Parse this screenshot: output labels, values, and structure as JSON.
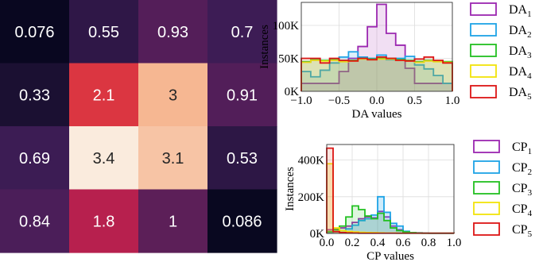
{
  "chart_data": [
    {
      "type": "heatmap",
      "rows": 4,
      "cols": 4,
      "values": [
        [
          0.076,
          0.55,
          0.93,
          0.7
        ],
        [
          0.33,
          2.1,
          3,
          0.91
        ],
        [
          0.69,
          3.4,
          3.1,
          0.53
        ],
        [
          0.84,
          1.8,
          1,
          0.086
        ]
      ],
      "labels": [
        [
          "0.076",
          "0.55",
          "0.93",
          "0.7"
        ],
        [
          "0.33",
          "2.1",
          "3",
          "0.91"
        ],
        [
          "0.69",
          "3.4",
          "3.1",
          "0.53"
        ],
        [
          "0.84",
          "1.8",
          "1",
          "0.086"
        ]
      ],
      "colormap": "rocket",
      "vmin": 0,
      "vmax": 3.4
    },
    {
      "type": "histogram",
      "xlabel": "DA values",
      "ylabel": "Instances",
      "xlim": [
        -1.0,
        1.0
      ],
      "ylim": [
        0,
        135000
      ],
      "x_ticks": [
        "−1.0",
        "−0.5",
        "0.0",
        "0.5",
        "1.0"
      ],
      "x_tick_values": [
        -1.0,
        -0.5,
        0.0,
        0.5,
        1.0
      ],
      "y_ticks": [
        "0K",
        "50K",
        "100K"
      ],
      "y_tick_values": [
        0,
        50000,
        100000
      ],
      "grid": true,
      "legend_position": "right",
      "bin_edges": [
        -1.0,
        -0.875,
        -0.75,
        -0.625,
        -0.5,
        -0.375,
        -0.25,
        -0.125,
        0.0,
        0.125,
        0.25,
        0.375,
        0.5,
        0.625,
        0.75,
        0.875,
        1.0
      ],
      "series": [
        {
          "name": "DA",
          "sub": "1",
          "color": "#9b27b0",
          "fill": "rgba(175,80,190,0.18)",
          "values": [
            12000,
            12000,
            12000,
            12000,
            30000,
            50000,
            68000,
            98000,
            132000,
            88000,
            70000,
            35000,
            12000,
            12000,
            12000,
            12000
          ]
        },
        {
          "name": "DA",
          "sub": "2",
          "color": "#1ea3e6",
          "fill": "rgba(30,163,230,0.15)",
          "values": [
            30000,
            22000,
            32000,
            43000,
            52000,
            60000,
            52000,
            50000,
            55000,
            48000,
            50000,
            53000,
            40000,
            34000,
            24000,
            12000
          ]
        },
        {
          "name": "DA",
          "sub": "3",
          "color": "#22c021",
          "fill": "rgba(34,192,33,0.12)",
          "values": [
            45000,
            48000,
            47000,
            48000,
            46000,
            47000,
            50000,
            49000,
            50000,
            50000,
            48000,
            47000,
            45000,
            47000,
            46000,
            45000
          ]
        },
        {
          "name": "DA",
          "sub": "4",
          "color": "#f2e40a",
          "fill": "rgba(230,210,0,0.12)",
          "values": [
            44000,
            47000,
            46000,
            47000,
            45000,
            46000,
            49000,
            48000,
            49000,
            49000,
            47000,
            46000,
            44000,
            46000,
            45000,
            44000
          ]
        },
        {
          "name": "DA",
          "sub": "5",
          "color": "#dd1515",
          "fill": "rgba(190,150,90,0.18)",
          "values": [
            50000,
            50000,
            43000,
            50000,
            47000,
            46000,
            50000,
            48000,
            52000,
            50000,
            47000,
            46000,
            49000,
            52000,
            47000,
            43000
          ]
        }
      ]
    },
    {
      "type": "histogram",
      "xlabel": "CP values",
      "ylabel": "Instances",
      "xlim": [
        0.0,
        1.0
      ],
      "ylim": [
        0,
        485000
      ],
      "x_ticks": [
        "0.0",
        "0.2",
        "0.4",
        "0.6",
        "0.8",
        "1.0"
      ],
      "x_tick_values": [
        0.0,
        0.2,
        0.4,
        0.6,
        0.8,
        1.0
      ],
      "y_ticks": [
        "0K",
        "200K",
        "400K"
      ],
      "y_tick_values": [
        0,
        200000,
        400000
      ],
      "grid": true,
      "legend_position": "right",
      "bin_edges": [
        0.0,
        0.05,
        0.1,
        0.15,
        0.2,
        0.25,
        0.3,
        0.35,
        0.4,
        0.45,
        0.5,
        0.55,
        0.6,
        0.65,
        0.7,
        0.75,
        0.8,
        0.85,
        0.9,
        0.95,
        1.0
      ],
      "series": [
        {
          "name": "CP",
          "sub": "1",
          "color": "#9b27b0",
          "fill": "rgba(175,80,190,0.15)",
          "values": [
            20000,
            25000,
            30000,
            40000,
            60000,
            80000,
            90000,
            85000,
            120000,
            90000,
            40000,
            20000,
            8000,
            5000,
            3000,
            2000,
            1000,
            1000,
            1000,
            1000
          ]
        },
        {
          "name": "CP",
          "sub": "2",
          "color": "#1ea3e6",
          "fill": "rgba(30,163,230,0.22)",
          "values": [
            5000,
            10000,
            15000,
            25000,
            45000,
            70000,
            80000,
            100000,
            200000,
            115000,
            55000,
            40000,
            12000,
            5000,
            3000,
            2000,
            1000,
            1000,
            1000,
            1000
          ]
        },
        {
          "name": "CP",
          "sub": "3",
          "color": "#22c021",
          "fill": "rgba(34,192,33,0.15)",
          "values": [
            10000,
            20000,
            40000,
            90000,
            150000,
            130000,
            95000,
            80000,
            110000,
            70000,
            30000,
            15000,
            8000,
            4000,
            2000,
            1000,
            1000,
            1000,
            1000,
            1000
          ]
        },
        {
          "name": "CP",
          "sub": "4",
          "color": "#f2e40a",
          "fill": "rgba(240,210,0,0.22)",
          "values": [
            380000,
            30000,
            15000,
            10000,
            8000,
            6000,
            5000,
            4000,
            3000,
            2000,
            2000,
            1000,
            1000,
            1000,
            1000,
            1000,
            1000,
            1000,
            1000,
            1000
          ]
        },
        {
          "name": "CP",
          "sub": "5",
          "color": "#dd1515",
          "fill": "rgba(230,110,80,0.18)",
          "values": [
            465000,
            10000,
            5000,
            3000,
            2000,
            1000,
            1000,
            1000,
            1000,
            1000,
            1000,
            1000,
            1000,
            1000,
            1000,
            1000,
            1000,
            1000,
            1000,
            1000
          ]
        }
      ]
    }
  ]
}
